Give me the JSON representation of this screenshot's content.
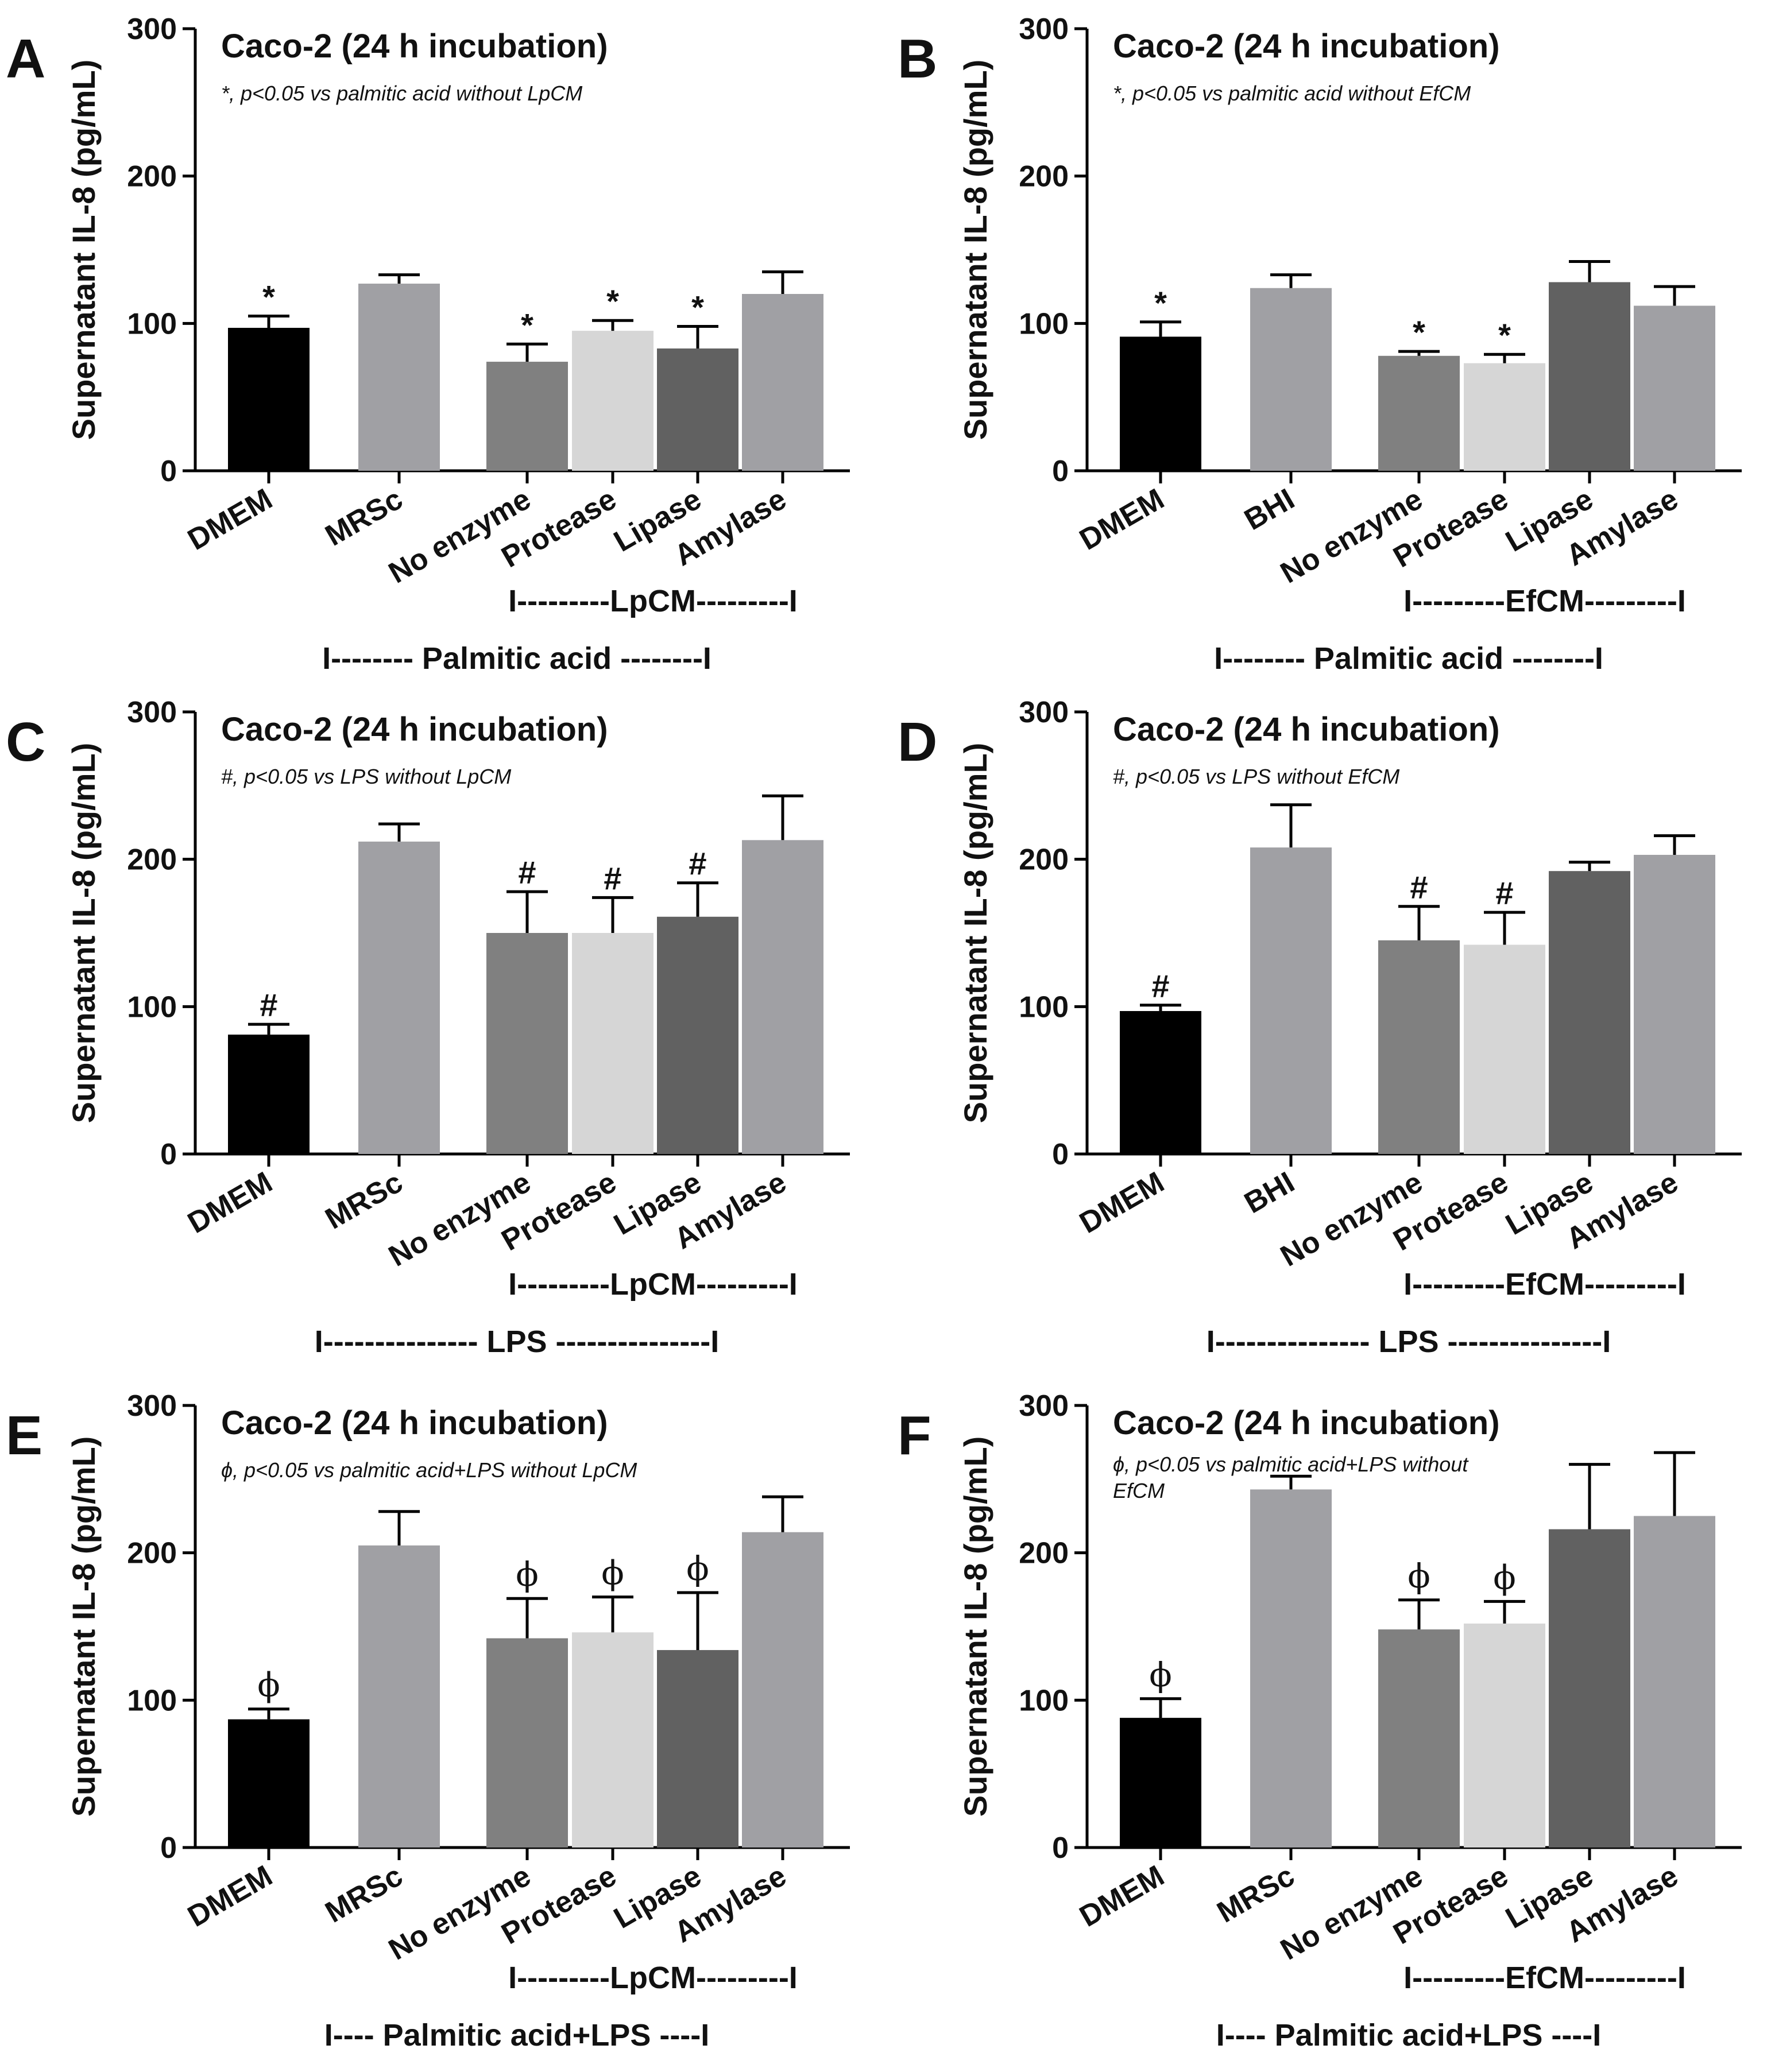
{
  "colors": {
    "DMEM": "#000000",
    "control": "#a0a0a4",
    "No enzyme": "#808080",
    "Protease": "#d6d6d6",
    "Lipase": "#616161",
    "Amylase": "#a0a0a4"
  },
  "chart_data": [
    {
      "panel": "A",
      "type": "bar",
      "title": "Caco-2 (24 h incubation)",
      "note": "*, p<0.05 vs palmitic acid without LpCM",
      "ylabel": "Supernatant IL-8 (pg/mL)",
      "ylim": [
        0,
        300
      ],
      "yticks": [
        0,
        100,
        200,
        300
      ],
      "categories": [
        "DMEM",
        "MRSc",
        "No enzyme",
        "Protease",
        "Lipase",
        "Amylase"
      ],
      "values": [
        97,
        127,
        74,
        95,
        83,
        120
      ],
      "errors": [
        8,
        6,
        12,
        7,
        15,
        15
      ],
      "markers": [
        "*",
        "",
        "*",
        "*",
        "*",
        ""
      ],
      "group_label": "I---------LpCM---------I",
      "treatment_label": "I-------- Palmitic acid --------I"
    },
    {
      "panel": "B",
      "type": "bar",
      "title": "Caco-2 (24 h incubation)",
      "note": "*, p<0.05 vs palmitic acid without EfCM",
      "ylabel": "Supernatant IL-8 (pg/mL)",
      "ylim": [
        0,
        300
      ],
      "yticks": [
        0,
        100,
        200,
        300
      ],
      "categories": [
        "DMEM",
        "BHI",
        "No enzyme",
        "Protease",
        "Lipase",
        "Amylase"
      ],
      "values": [
        91,
        124,
        78,
        73,
        128,
        112
      ],
      "errors": [
        10,
        9,
        3,
        6,
        14,
        13
      ],
      "markers": [
        "*",
        "",
        "*",
        "*",
        "",
        ""
      ],
      "group_label": "I---------EfCM---------I",
      "treatment_label": "I-------- Palmitic acid --------I"
    },
    {
      "panel": "C",
      "type": "bar",
      "title": "Caco-2 (24 h incubation)",
      "note": "#, p<0.05 vs LPS without LpCM",
      "ylabel": "Supernatant IL-8 (pg/mL)",
      "ylim": [
        0,
        300
      ],
      "yticks": [
        0,
        100,
        200,
        300
      ],
      "categories": [
        "DMEM",
        "MRSc",
        "No enzyme",
        "Protease",
        "Lipase",
        "Amylase"
      ],
      "values": [
        81,
        212,
        150,
        150,
        161,
        213
      ],
      "errors": [
        7,
        12,
        28,
        24,
        23,
        30
      ],
      "markers": [
        "#",
        "",
        "#",
        "#",
        "#",
        ""
      ],
      "group_label": "I---------LpCM---------I",
      "treatment_label": "I--------------- LPS ---------------I"
    },
    {
      "panel": "D",
      "type": "bar",
      "title": "Caco-2 (24 h incubation)",
      "note": "#, p<0.05 vs LPS without EfCM",
      "ylabel": "Supernatant IL-8 (pg/mL)",
      "ylim": [
        0,
        300
      ],
      "yticks": [
        0,
        100,
        200,
        300
      ],
      "categories": [
        "DMEM",
        "BHI",
        "No enzyme",
        "Protease",
        "Lipase",
        "Amylase"
      ],
      "values": [
        97,
        208,
        145,
        142,
        192,
        203
      ],
      "errors": [
        4,
        29,
        23,
        22,
        6,
        13
      ],
      "markers": [
        "#",
        "",
        "#",
        "#",
        "",
        ""
      ],
      "group_label": "I---------EfCM---------I",
      "treatment_label": "I--------------- LPS ---------------I"
    },
    {
      "panel": "E",
      "type": "bar",
      "title": "Caco-2 (24 h incubation)",
      "note": "ϕ, p<0.05 vs palmitic acid+LPS without LpCM",
      "ylabel": "Supernatant IL-8 (pg/mL)",
      "ylim": [
        0,
        300
      ],
      "yticks": [
        0,
        100,
        200,
        300
      ],
      "categories": [
        "DMEM",
        "MRSc",
        "No enzyme",
        "Protease",
        "Lipase",
        "Amylase"
      ],
      "values": [
        87,
        205,
        142,
        146,
        134,
        214
      ],
      "errors": [
        7,
        23,
        27,
        24,
        39,
        24
      ],
      "markers": [
        "ϕ",
        "",
        "ϕ",
        "ϕ",
        "ϕ",
        ""
      ],
      "group_label": "I---------LpCM---------I",
      "treatment_label": "I---- Palmitic acid+LPS ----I"
    },
    {
      "panel": "F",
      "type": "bar",
      "title": "Caco-2 (24 h incubation)",
      "note": "ϕ, p<0.05 vs palmitic acid+LPS without EfCM",
      "ylabel": "Supernatant IL-8 (pg/mL)",
      "ylim": [
        0,
        300
      ],
      "yticks": [
        0,
        100,
        200,
        300
      ],
      "categories": [
        "DMEM",
        "MRSc",
        "No enzyme",
        "Protease",
        "Lipase",
        "Amylase"
      ],
      "values": [
        88,
        243,
        148,
        152,
        216,
        225
      ],
      "errors": [
        13,
        9,
        20,
        15,
        44,
        43
      ],
      "markers": [
        "ϕ",
        "",
        "ϕ",
        "ϕ",
        "",
        ""
      ],
      "group_label": "I---------EfCM---------I",
      "treatment_label": "I---- Palmitic acid+LPS ----I"
    }
  ]
}
